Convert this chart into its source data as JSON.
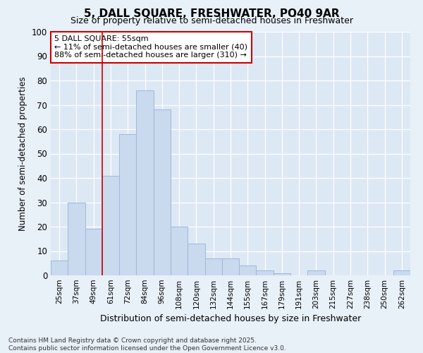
{
  "title1": "5, DALL SQUARE, FRESHWATER, PO40 9AR",
  "title2": "Size of property relative to semi-detached houses in Freshwater",
  "xlabel": "Distribution of semi-detached houses by size in Freshwater",
  "ylabel": "Number of semi-detached properties",
  "categories": [
    "25sqm",
    "37sqm",
    "49sqm",
    "61sqm",
    "72sqm",
    "84sqm",
    "96sqm",
    "108sqm",
    "120sqm",
    "132sqm",
    "144sqm",
    "155sqm",
    "167sqm",
    "179sqm",
    "191sqm",
    "203sqm",
    "215sqm",
    "227sqm",
    "238sqm",
    "250sqm",
    "262sqm"
  ],
  "values": [
    6,
    30,
    19,
    41,
    58,
    76,
    68,
    20,
    13,
    7,
    7,
    4,
    2,
    1,
    0,
    2,
    0,
    0,
    0,
    0,
    2
  ],
  "bar_color": "#c9d9ee",
  "bar_edge_color": "#a0b8d8",
  "vline_x": 2.5,
  "vline_color": "#cc0000",
  "annotation_title": "5 DALL SQUARE: 55sqm",
  "annotation_line1": "← 11% of semi-detached houses are smaller (40)",
  "annotation_line2": "88% of semi-detached houses are larger (310) →",
  "annotation_box_color": "#cc0000",
  "ylim": [
    0,
    100
  ],
  "yticks": [
    0,
    10,
    20,
    30,
    40,
    50,
    60,
    70,
    80,
    90,
    100
  ],
  "footer_line1": "Contains HM Land Registry data © Crown copyright and database right 2025.",
  "footer_line2": "Contains public sector information licensed under the Open Government Licence v3.0.",
  "bg_color": "#e8f0f8",
  "plot_bg_color": "#dde8f5"
}
